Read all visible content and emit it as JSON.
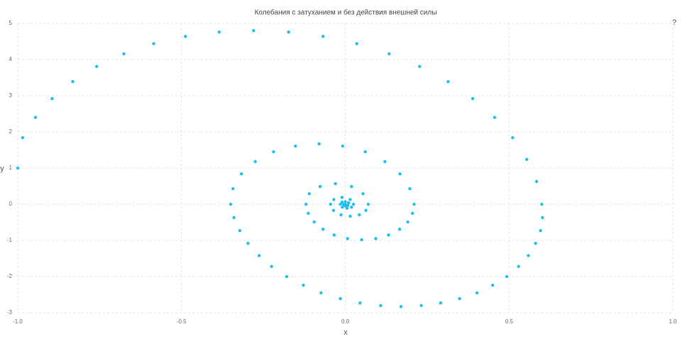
{
  "chart_data": {
    "type": "scatter",
    "title": "Колебания с затуханием и без действия внешней силы",
    "xlabel": "x",
    "ylabel": "y",
    "x": [
      -1.0,
      -0.985,
      -0.946,
      -0.895,
      -0.832,
      -0.759,
      -0.676,
      -0.585,
      -0.488,
      -0.385,
      -0.28,
      -0.173,
      -0.068,
      0.035,
      0.134,
      0.227,
      0.314,
      0.389,
      0.456,
      0.511,
      0.554,
      0.584,
      0.6,
      0.602,
      0.596,
      0.581,
      0.559,
      0.529,
      0.493,
      0.45,
      0.402,
      0.349,
      0.291,
      0.232,
      0.17,
      0.108,
      0.045,
      -0.015,
      -0.074,
      -0.128,
      -0.179,
      -0.225,
      -0.263,
      -0.297,
      -0.322,
      -0.34,
      -0.35,
      -0.343,
      -0.317,
      -0.275,
      -0.219,
      -0.152,
      -0.08,
      -0.008,
      0.061,
      0.121,
      0.167,
      0.197,
      0.21,
      0.205,
      0.191,
      0.166,
      0.132,
      0.093,
      0.05,
      0.007,
      -0.034,
      -0.068,
      -0.095,
      -0.113,
      -0.12,
      -0.11,
      -0.077,
      -0.03,
      0.019,
      0.054,
      0.07,
      0.063,
      0.043,
      0.015,
      -0.013,
      -0.036,
      -0.045,
      -0.035,
      -0.01,
      0.015,
      0.025,
      0.019,
      0.005,
      -0.009,
      -0.015,
      -0.01,
      0,
      0.01,
      0.008,
      0,
      -0.005,
      0
    ],
    "values": [
      1,
      1.84,
      2.4,
      2.92,
      3.39,
      3.81,
      4.16,
      4.44,
      4.64,
      4.76,
      4.8,
      4.76,
      4.64,
      4.44,
      4.16,
      3.81,
      3.39,
      2.92,
      2.4,
      1.84,
      1.24,
      0.63,
      0,
      -0.37,
      -0.73,
      -1.08,
      -1.42,
      -1.72,
      -2,
      -2.24,
      -2.45,
      -2.61,
      -2.73,
      -2.8,
      -2.83,
      -2.8,
      -2.73,
      -2.61,
      -2.45,
      -2.24,
      -2,
      -1.72,
      -1.42,
      -1.08,
      -0.73,
      -0.37,
      0,
      0.43,
      0.84,
      1.18,
      1.45,
      1.61,
      1.67,
      1.61,
      1.45,
      1.18,
      0.84,
      0.43,
      0,
      -0.25,
      -0.49,
      -0.69,
      -0.85,
      -0.95,
      -0.98,
      -0.95,
      -0.85,
      -0.69,
      -0.49,
      -0.25,
      0,
      0.29,
      0.49,
      0.57,
      0.49,
      0.29,
      0,
      -0.17,
      -0.29,
      -0.33,
      -0.29,
      -0.17,
      0,
      0.13,
      0.19,
      0.13,
      0,
      -0.08,
      -0.11,
      -0.08,
      0,
      0.06,
      0.07,
      0.04,
      -0.03,
      -0.04,
      -0.01,
      0
    ],
    "color": "#1bc0ee",
    "xlim": [
      -1,
      1
    ],
    "ylim": [
      -3,
      5
    ],
    "xticks": [
      {
        "value": -1,
        "label": "-1.0"
      },
      {
        "value": -0.5,
        "label": "-0.5"
      },
      {
        "value": 0,
        "label": "0.0"
      },
      {
        "value": 0.5,
        "label": "0.5"
      },
      {
        "value": 1,
        "label": "1.0"
      }
    ],
    "yticks": [
      -3,
      -2,
      -1,
      0,
      1,
      2,
      3,
      4,
      5
    ],
    "grid": true
  },
  "help_button": "?"
}
